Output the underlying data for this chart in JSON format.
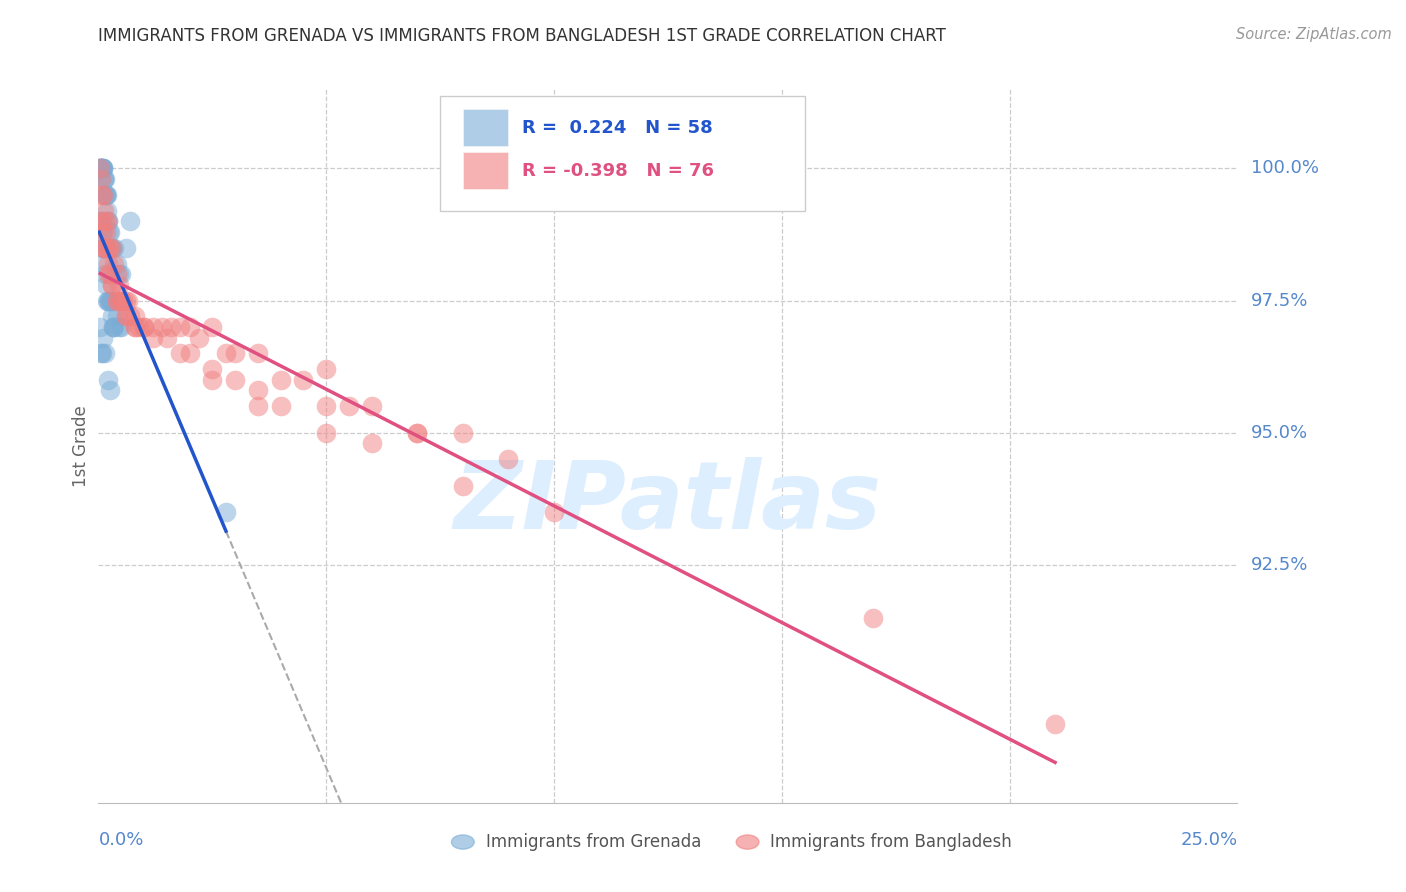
{
  "title": "IMMIGRANTS FROM GRENADA VS IMMIGRANTS FROM BANGLADESH 1ST GRADE CORRELATION CHART",
  "source": "Source: ZipAtlas.com",
  "ylabel": "1st Grade",
  "ylabel_ticks": [
    "92.5%",
    "95.0%",
    "97.5%",
    "100.0%"
  ],
  "ylabel_values": [
    92.5,
    95.0,
    97.5,
    100.0
  ],
  "xmin": 0.0,
  "xmax": 25.0,
  "ymin": 88.0,
  "ymax": 101.5,
  "R_grenada": 0.224,
  "N_grenada": 58,
  "R_bangladesh": -0.398,
  "N_bangladesh": 76,
  "color_grenada": "#7aadd6",
  "color_bangladesh": "#f08080",
  "color_line_grenada": "#2255cc",
  "color_line_bangladesh": "#e05080",
  "watermark_color": "#ddeeff",
  "background_color": "#ffffff",
  "grid_color": "#cccccc",
  "tick_label_color": "#5588CC",
  "title_color": "#333333",
  "grenada_x": [
    0.02,
    0.03,
    0.04,
    0.05,
    0.06,
    0.07,
    0.08,
    0.09,
    0.1,
    0.11,
    0.12,
    0.13,
    0.14,
    0.15,
    0.16,
    0.17,
    0.18,
    0.19,
    0.2,
    0.22,
    0.24,
    0.26,
    0.28,
    0.3,
    0.35,
    0.4,
    0.45,
    0.5,
    0.6,
    0.7,
    0.03,
    0.05,
    0.07,
    0.09,
    0.11,
    0.13,
    0.15,
    0.17,
    0.19,
    0.21,
    0.23,
    0.25,
    0.27,
    0.29,
    0.31,
    0.33,
    0.35,
    0.4,
    0.45,
    0.5,
    0.03,
    0.05,
    0.07,
    0.1,
    0.15,
    0.2,
    0.25,
    2.8
  ],
  "grenada_y": [
    100.0,
    100.0,
    100.0,
    100.0,
    100.0,
    100.0,
    100.0,
    100.0,
    100.0,
    100.0,
    99.8,
    99.8,
    99.8,
    99.5,
    99.5,
    99.5,
    99.5,
    99.2,
    99.0,
    99.0,
    98.8,
    98.8,
    98.5,
    98.5,
    98.5,
    98.2,
    98.0,
    98.0,
    98.5,
    99.0,
    99.0,
    99.0,
    98.8,
    98.5,
    98.5,
    98.2,
    98.0,
    97.8,
    97.5,
    97.5,
    97.5,
    97.5,
    97.5,
    97.2,
    97.0,
    97.0,
    97.0,
    97.2,
    97.0,
    97.0,
    97.0,
    96.5,
    96.5,
    96.8,
    96.5,
    96.0,
    95.8,
    93.5
  ],
  "bangladesh_x": [
    0.04,
    0.06,
    0.08,
    0.1,
    0.12,
    0.14,
    0.16,
    0.18,
    0.2,
    0.25,
    0.3,
    0.35,
    0.4,
    0.45,
    0.5,
    0.55,
    0.6,
    0.65,
    0.7,
    0.8,
    0.9,
    1.0,
    1.2,
    1.4,
    1.6,
    1.8,
    2.0,
    2.2,
    2.5,
    2.8,
    3.0,
    3.5,
    4.0,
    4.5,
    5.0,
    5.5,
    6.0,
    7.0,
    8.0,
    9.0,
    0.1,
    0.15,
    0.2,
    0.25,
    0.3,
    0.4,
    0.5,
    0.6,
    0.8,
    1.0,
    1.5,
    2.0,
    2.5,
    3.0,
    3.5,
    4.0,
    5.0,
    6.0,
    8.0,
    10.0,
    0.05,
    0.1,
    0.15,
    0.2,
    0.3,
    0.4,
    0.6,
    0.8,
    1.2,
    1.8,
    2.5,
    3.5,
    5.0,
    7.0,
    17.0,
    21.0
  ],
  "bangladesh_y": [
    100.0,
    99.8,
    99.5,
    99.5,
    99.2,
    99.0,
    98.8,
    99.0,
    98.5,
    98.5,
    98.5,
    98.2,
    98.0,
    97.8,
    97.5,
    97.5,
    97.5,
    97.5,
    97.2,
    97.2,
    97.0,
    97.0,
    97.0,
    97.0,
    97.0,
    97.0,
    97.0,
    96.8,
    97.0,
    96.5,
    96.5,
    96.5,
    96.0,
    96.0,
    96.2,
    95.5,
    95.5,
    95.0,
    95.0,
    94.5,
    98.5,
    98.5,
    98.2,
    98.0,
    97.8,
    97.5,
    97.5,
    97.2,
    97.0,
    97.0,
    96.8,
    96.5,
    96.2,
    96.0,
    95.8,
    95.5,
    95.0,
    94.8,
    94.0,
    93.5,
    99.0,
    98.8,
    98.5,
    98.0,
    97.8,
    97.5,
    97.2,
    97.0,
    96.8,
    96.5,
    96.0,
    95.5,
    95.5,
    95.0,
    91.5,
    89.5
  ]
}
